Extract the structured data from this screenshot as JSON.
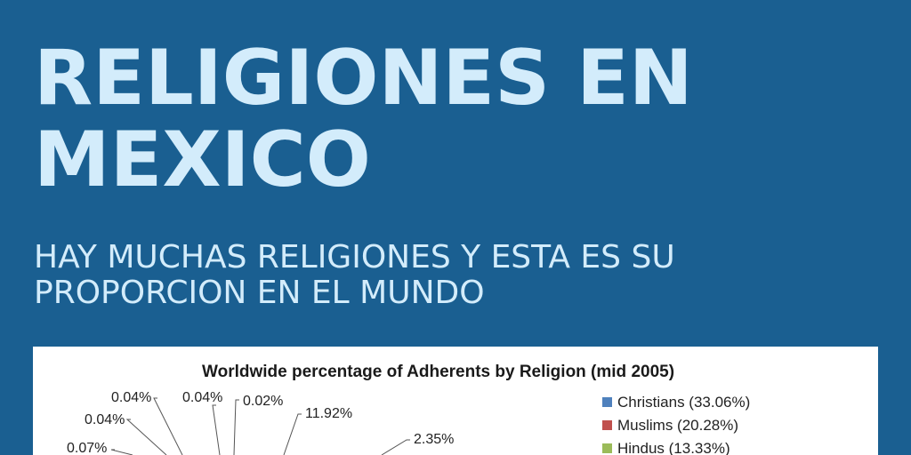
{
  "header": {
    "title_line1": "RELIGIONES EN",
    "title_line2": "MEXICO",
    "subtitle_line1": "HAY MUCHAS RELIGIONES Y ESTA ES SU",
    "subtitle_line2": "PROPORCION EN EL MUNDO"
  },
  "colors": {
    "background": "#1a5f91",
    "text": "#d3ecfb",
    "card": "#ffffff"
  },
  "chart_data": {
    "type": "pie",
    "title": "Worldwide percentage of Adherents by Religion (mid 2005)",
    "slice_labels": [
      "0.04%",
      "0.04%",
      "0.02%",
      "11.92%",
      "0.04%",
      "0.07%",
      "2.35%"
    ],
    "legend": [
      {
        "label": "Christians (33.06%)",
        "color": "#4f81bd"
      },
      {
        "label": "Muslims (20.28%)",
        "color": "#c0504d"
      },
      {
        "label": "Hindus (13.33%)",
        "color": "#9bbb59"
      }
    ],
    "legend_position": "right"
  }
}
